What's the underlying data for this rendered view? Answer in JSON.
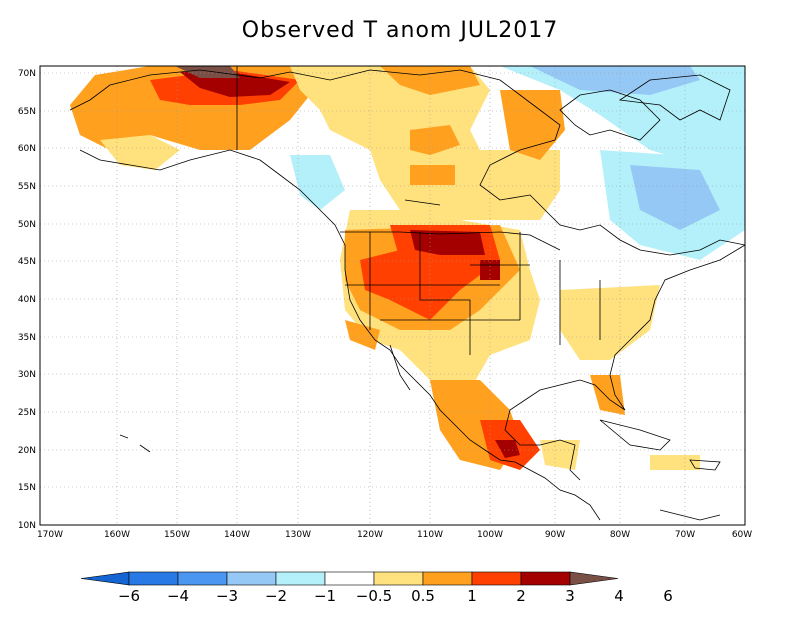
{
  "title": "Observed T anom JUL2017",
  "lat_labels": [
    "70N",
    "65N",
    "60N",
    "55N",
    "50N",
    "45N",
    "40N",
    "35N",
    "30N",
    "25N",
    "20N",
    "15N",
    "10N"
  ],
  "lon_labels": [
    "170W",
    "160W",
    "150W",
    "140W",
    "130W",
    "120W",
    "110W",
    "100W",
    "90W",
    "80W",
    "70W",
    "60W"
  ],
  "colorbar": {
    "labels": [
      "−6",
      "−4",
      "−3",
      "−2",
      "−1",
      "−0.5",
      "0.5",
      "1",
      "2",
      "3",
      "4",
      "6"
    ],
    "colors": [
      "#1464d2",
      "#2878e6",
      "#4a96f0",
      "#96c8f5",
      "#b4f0fa",
      "#ffffff",
      "#ffe17d",
      "#ffa01e",
      "#ff4000",
      "#a50000",
      "#7a5046"
    ]
  },
  "anomaly_regions": [
    {
      "region": "Alaska",
      "level": "1 to 2"
    },
    {
      "region": "Northern Alaska / Yukon coast",
      "level": "3 to 6"
    },
    {
      "region": "US Northern Plains",
      "level": "2 to 4"
    },
    {
      "region": "US West",
      "level": "1 to 3"
    },
    {
      "region": "Eastern Canada",
      "level": "-2 to -0.5"
    },
    {
      "region": "Southern Mexico",
      "level": "2 to 4"
    }
  ]
}
